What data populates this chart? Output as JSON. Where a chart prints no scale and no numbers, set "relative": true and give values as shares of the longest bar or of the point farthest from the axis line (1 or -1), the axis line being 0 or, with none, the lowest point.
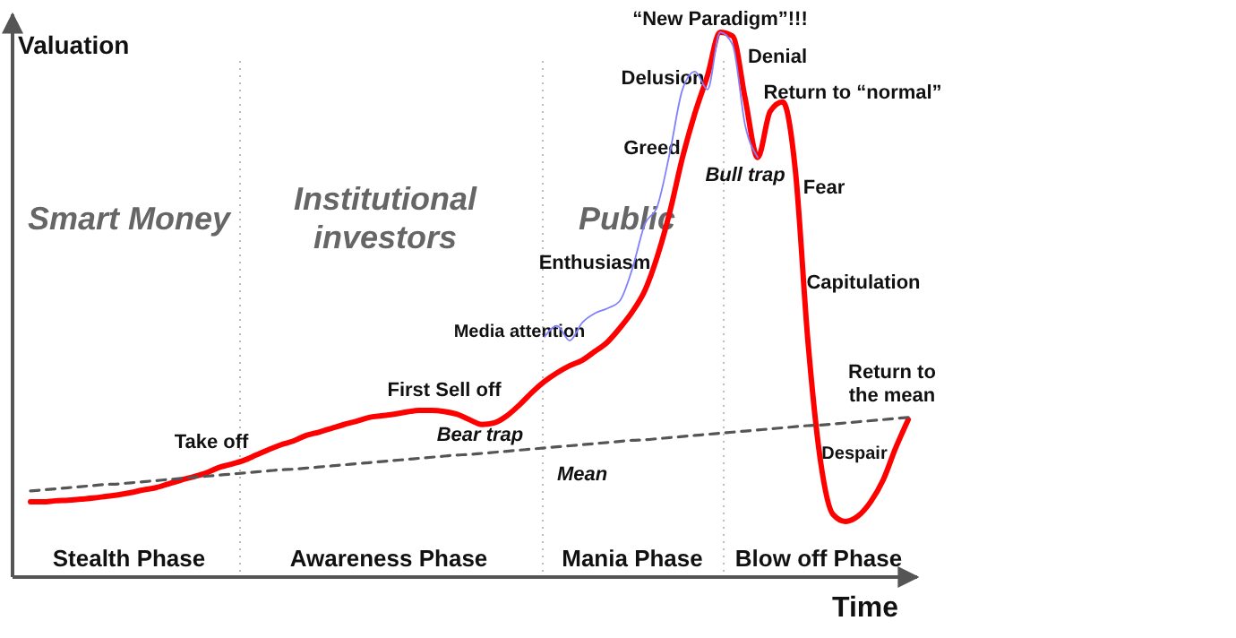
{
  "chart_data": {
    "type": "line",
    "relative": true,
    "xlabel": "Time",
    "ylabel": "Valuation",
    "categories": [
      null,
      null,
      null,
      null,
      null,
      null,
      null,
      null,
      null,
      null,
      null,
      null,
      null,
      null,
      null,
      null,
      null,
      null,
      null,
      null,
      null,
      null,
      null,
      null,
      null,
      null,
      null,
      null,
      null,
      null,
      null,
      null,
      null,
      null,
      null,
      null,
      null,
      null,
      null,
      null,
      null,
      null,
      null,
      null,
      null,
      null,
      null,
      null,
      null,
      null,
      null,
      null,
      null,
      null,
      null,
      null,
      null,
      null,
      null,
      null,
      null,
      null,
      null,
      null,
      null,
      null,
      null,
      null,
      null,
      null,
      null
    ],
    "series": [
      {
        "color": "#ff0000",
        "values": [
          0.138,
          0.138,
          0.14,
          0.141,
          0.143,
          0.145,
          0.148,
          0.151,
          0.155,
          0.16,
          0.164,
          0.171,
          0.178,
          0.184,
          0.191,
          0.201,
          0.207,
          0.214,
          0.224,
          0.234,
          0.243,
          0.25,
          0.26,
          0.266,
          0.273,
          0.28,
          0.286,
          0.293,
          0.296,
          0.299,
          0.303,
          0.306,
          0.306,
          0.304,
          0.299,
          0.289,
          0.28,
          0.283,
          0.296,
          0.316,
          0.339,
          0.359,
          0.375,
          0.388,
          0.398,
          0.414,
          0.431,
          0.457,
          0.487,
          0.526,
          0.589,
          0.671,
          0.77,
          0.852,
          0.921,
          1.0,
          0.993,
          0.878,
          0.77,
          0.855,
          0.872,
          0.747,
          0.434,
          0.214,
          0.115,
          0.102,
          0.112,
          0.138,
          0.178,
          0.237,
          0.289
        ]
      },
      {
        "color": "#8080ff",
        "values": [
          null,
          null,
          null,
          null,
          null,
          null,
          null,
          null,
          null,
          null,
          null,
          null,
          null,
          null,
          null,
          null,
          null,
          null,
          null,
          null,
          null,
          null,
          null,
          null,
          null,
          null,
          null,
          null,
          null,
          null,
          null,
          null,
          null,
          null,
          null,
          null,
          null,
          null,
          null,
          null,
          null,
          0.441,
          0.461,
          0.434,
          0.467,
          0.484,
          0.493,
          0.507,
          0.566,
          0.648,
          0.681,
          0.78,
          0.895,
          0.928,
          0.895,
          1.0,
          0.977,
          0.829,
          0.77,
          null,
          null,
          null,
          null,
          null,
          null,
          null,
          null,
          null,
          null,
          null,
          null
        ]
      },
      {
        "name": "Mean",
        "color": "#555555",
        "line_style": "dashed",
        "values": [
          0.158,
          0.16,
          0.162,
          0.164,
          0.166,
          0.168,
          0.17,
          0.171,
          0.173,
          0.175,
          0.177,
          0.179,
          0.181,
          0.183,
          0.185,
          0.187,
          0.189,
          0.191,
          0.193,
          0.195,
          0.197,
          0.198,
          0.2,
          0.202,
          0.204,
          0.206,
          0.208,
          0.21,
          0.212,
          0.214,
          0.216,
          0.218,
          0.22,
          0.222,
          0.224,
          0.225,
          0.227,
          0.229,
          0.231,
          0.233,
          0.235,
          0.237,
          0.239,
          0.241,
          0.243,
          0.245,
          0.247,
          0.249,
          0.251,
          0.252,
          0.254,
          0.256,
          0.258,
          0.26,
          0.262,
          0.264,
          0.266,
          0.268,
          0.27,
          0.272,
          0.274,
          0.276,
          0.278,
          0.279,
          0.281,
          0.283,
          0.285,
          0.287,
          0.289,
          0.291,
          0.293
        ]
      }
    ],
    "annotations": [
      "Smart Money",
      "Institutional investors",
      "Public",
      "Stealth Phase",
      "Awareness Phase",
      "Mania Phase",
      "Blow off Phase",
      "“New Paradigm”!!!",
      "Delusion",
      "Denial",
      "Return to “normal”",
      "Greed",
      "Bull trap",
      "Fear",
      "Enthusiasm",
      "Capitulation",
      "Media attention",
      "First Sell off",
      "Bear trap",
      "Take off",
      "Despair",
      "Return to the mean"
    ]
  }
}
